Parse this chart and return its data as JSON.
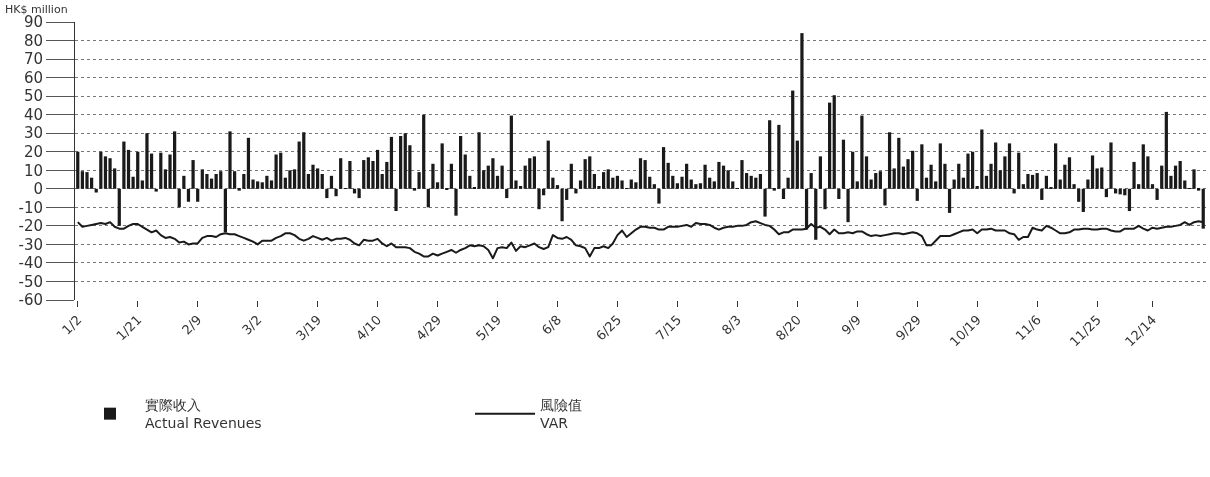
{
  "chart_data": {
    "type": "bar",
    "ylabel": "HK$ million",
    "categories": [
      "1/2",
      null,
      null,
      null,
      null,
      null,
      null,
      null,
      null,
      null,
      null,
      null,
      null,
      "1/21",
      null,
      null,
      null,
      null,
      null,
      null,
      null,
      null,
      null,
      null,
      null,
      null,
      "2/9",
      null,
      null,
      null,
      null,
      null,
      null,
      null,
      null,
      null,
      null,
      null,
      null,
      "3/2",
      null,
      null,
      null,
      null,
      null,
      null,
      null,
      null,
      null,
      null,
      null,
      null,
      "3/19",
      null,
      null,
      null,
      null,
      null,
      null,
      null,
      null,
      null,
      null,
      null,
      null,
      "4/10",
      null,
      null,
      null,
      null,
      null,
      null,
      null,
      null,
      null,
      null,
      null,
      null,
      "4/29",
      null,
      null,
      null,
      null,
      null,
      null,
      null,
      null,
      null,
      null,
      null,
      null,
      "5/19",
      null,
      null,
      null,
      null,
      null,
      null,
      null,
      null,
      null,
      null,
      null,
      null,
      "6/8",
      null,
      null,
      null,
      null,
      null,
      null,
      null,
      null,
      null,
      null,
      null,
      null,
      "6/25",
      null,
      null,
      null,
      null,
      null,
      null,
      null,
      null,
      null,
      null,
      null,
      null,
      "7/15",
      null,
      null,
      null,
      null,
      null,
      null,
      null,
      null,
      null,
      null,
      null,
      null,
      "8/3",
      null,
      null,
      null,
      null,
      null,
      null,
      null,
      null,
      null,
      null,
      null,
      null,
      "8/20",
      null,
      null,
      null,
      null,
      null,
      null,
      null,
      null,
      null,
      null,
      null,
      null,
      "9/9",
      null,
      null,
      null,
      null,
      null,
      null,
      null,
      null,
      null,
      null,
      null,
      null,
      "9/29",
      null,
      null,
      null,
      null,
      null,
      null,
      null,
      null,
      null,
      null,
      null,
      null,
      "10/19",
      null,
      null,
      null,
      null,
      null,
      null,
      null,
      null,
      null,
      null,
      null,
      null,
      "11/6",
      null,
      null,
      null,
      null,
      null,
      null,
      null,
      null,
      null,
      null,
      null,
      null,
      "11/25",
      null,
      null,
      null,
      null,
      null,
      null,
      null,
      null,
      null,
      null,
      null,
      "12/14",
      null,
      null,
      null,
      null,
      null,
      null,
      null,
      null,
      null,
      null,
      null
    ],
    "series": [
      {
        "name": "實際收入\nActual Revenues",
        "color": "#1a1a1a",
        "values": [
          20,
          9.5,
          9,
          6,
          -2,
          20,
          17.5,
          16.5,
          11,
          -20,
          25.5,
          21,
          6.5,
          20,
          4.5,
          30,
          19,
          -1.5,
          19.5,
          10.5,
          18.5,
          31,
          -10,
          7,
          -7,
          15.5,
          -7,
          10.5,
          8,
          5.5,
          8,
          9.5,
          -23.5,
          31,
          9.5,
          -1,
          8,
          27.5,
          5,
          4,
          3.5,
          7,
          4.5,
          18.5,
          19.5,
          6,
          10,
          10.5,
          25.5,
          30.5,
          8,
          13,
          11,
          8,
          -5,
          7,
          -4,
          16.5,
          0.3,
          15,
          -2.5,
          -5,
          15.5,
          17,
          15,
          21,
          8,
          14.5,
          28,
          -12,
          28.5,
          30,
          23.5,
          -1,
          9,
          40,
          -10,
          13.5,
          3.5,
          24.5,
          -0.5,
          13.5,
          -14.5,
          28.5,
          18.5,
          7,
          1,
          30.5,
          10,
          12.5,
          16.5,
          7,
          12.5,
          -5,
          39.5,
          4.5,
          1.5,
          12.5,
          16.5,
          17.5,
          -11,
          -3.5,
          26,
          6,
          2,
          -17.5,
          -6,
          13.5,
          -2.5,
          4.5,
          16,
          17.5,
          8,
          1.5,
          9,
          10.5,
          6,
          7,
          4.5,
          0.2,
          5,
          3.5,
          16.5,
          15.5,
          6.5,
          2.5,
          -8,
          22.5,
          14,
          7,
          3,
          6.5,
          13.5,
          5,
          2.5,
          3,
          13,
          6,
          4,
          14.5,
          12.5,
          10,
          4,
          0.2,
          15.5,
          8.5,
          7,
          6,
          8,
          -15,
          37,
          -1,
          34.5,
          -5.5,
          6,
          53,
          26,
          84,
          -22,
          8.5,
          -27.5,
          17.5,
          -11,
          46.5,
          50.5,
          -5.5,
          26.5,
          -18,
          20,
          4,
          39.5,
          17.5,
          5,
          8.5,
          9.5,
          -9,
          30.5,
          11,
          27.5,
          12,
          16,
          20.5,
          -6.5,
          24,
          6,
          13,
          4,
          24.5,
          13.5,
          -13,
          5,
          13.5,
          6,
          19,
          20,
          1.5,
          32,
          7,
          13.5,
          25,
          10,
          17.5,
          24.5,
          -2.5,
          19.5,
          2.5,
          8,
          7.5,
          8.5,
          -6,
          7,
          0.5,
          24.5,
          5,
          13,
          17,
          2.5,
          -7,
          -12.5,
          5,
          18,
          11,
          11.5,
          -4.5,
          25,
          -2.5,
          -3,
          -3.5,
          -12,
          14.5,
          2.5,
          24,
          17.5,
          2.5,
          -6,
          12.5,
          41.5,
          7,
          12.5,
          15,
          4.5,
          0.4,
          10.5,
          -1,
          -21.5
        ]
      },
      {
        "name": "風險值\nVAR",
        "type": "line",
        "color": "#1a1a1a",
        "values": [
          -18,
          -20.5,
          -20,
          -19.5,
          -19,
          -18.5,
          -19,
          -18,
          -20.5,
          -21.5,
          -21.5,
          -20,
          -19,
          -19,
          -20.5,
          -22,
          -23.5,
          -22.5,
          -25,
          -26.5,
          -26,
          -27,
          -29,
          -28.5,
          -30,
          -29.5,
          -29.5,
          -26.5,
          -25.5,
          -25.5,
          -26,
          -24.5,
          -24,
          -24.5,
          -24.5,
          -25.5,
          -26.5,
          -27.5,
          -28.5,
          -30,
          -28,
          -28,
          -28,
          -26.5,
          -25.5,
          -24,
          -24,
          -25,
          -27,
          -28,
          -27,
          -25.5,
          -26.5,
          -27.5,
          -26.5,
          -28,
          -27,
          -27,
          -26.5,
          -27.5,
          -29.5,
          -30.5,
          -27.5,
          -28,
          -28,
          -27,
          -29.5,
          -31,
          -29.5,
          -31.5,
          -31.5,
          -31.5,
          -32,
          -34,
          -35,
          -36.5,
          -36.5,
          -35,
          -36,
          -35,
          -34,
          -33,
          -34.5,
          -33,
          -32,
          -30.5,
          -31,
          -30.5,
          -31,
          -33,
          -37.5,
          -32,
          -31.5,
          -32,
          -29,
          -33.5,
          -31,
          -31.5,
          -30.5,
          -29.5,
          -31.5,
          -32.5,
          -31.5,
          -25,
          -26.5,
          -27,
          -26,
          -27.5,
          -30.5,
          -31,
          -32,
          -36.5,
          -32,
          -32,
          -31,
          -32,
          -29.5,
          -25,
          -22.5,
          -26,
          -24,
          -22,
          -20.5,
          -20.5,
          -21,
          -21,
          -22,
          -22,
          -20.5,
          -20.5,
          -20.5,
          -20,
          -19.5,
          -20.5,
          -18.5,
          -19,
          -19,
          -19.5,
          -21,
          -22,
          -21,
          -20.5,
          -20.5,
          -20,
          -20,
          -19.5,
          -18,
          -17.5,
          -18.5,
          -19.5,
          -20,
          -22,
          -24.5,
          -23.5,
          -23.5,
          -22,
          -22,
          -22,
          -21.5,
          -19,
          -21,
          -20.5,
          -22,
          -24.5,
          -22,
          -24,
          -24,
          -23.5,
          -24,
          -23,
          -23,
          -24.5,
          -25.5,
          -25,
          -25.5,
          -25,
          -24.5,
          -24,
          -24,
          -24.5,
          -24,
          -23.5,
          -24,
          -25.5,
          -30.5,
          -30.5,
          -28,
          -25.5,
          -25.5,
          -25.5,
          -24.5,
          -23.5,
          -22.5,
          -22.5,
          -22,
          -24,
          -22,
          -22,
          -21.5,
          -22.5,
          -22.5,
          -22.5,
          -24,
          -24.5,
          -27.5,
          -26,
          -26,
          -21,
          -22,
          -22.5,
          -20,
          -21,
          -22.5,
          -24,
          -24,
          -23.5,
          -22,
          -22,
          -21.5,
          -21.5,
          -22,
          -22,
          -21.5,
          -21.5,
          -22.5,
          -23,
          -23,
          -21.5,
          -21.5,
          -21.5,
          -20,
          -21.5,
          -22.5,
          -21,
          -21.5,
          -21,
          -20.5,
          -20.5,
          -20,
          -19.5,
          -18,
          -19.5,
          -18,
          -17.5,
          -18
        ]
      }
    ],
    "ylim": [
      -60,
      90
    ],
    "yticks": [
      -60,
      -50,
      -40,
      -30,
      -20,
      -10,
      0,
      10,
      20,
      30,
      40,
      50,
      60,
      70,
      80,
      90
    ],
    "grid": "y",
    "legend": "bottom left",
    "line_style": "solid",
    "marker": "none"
  }
}
